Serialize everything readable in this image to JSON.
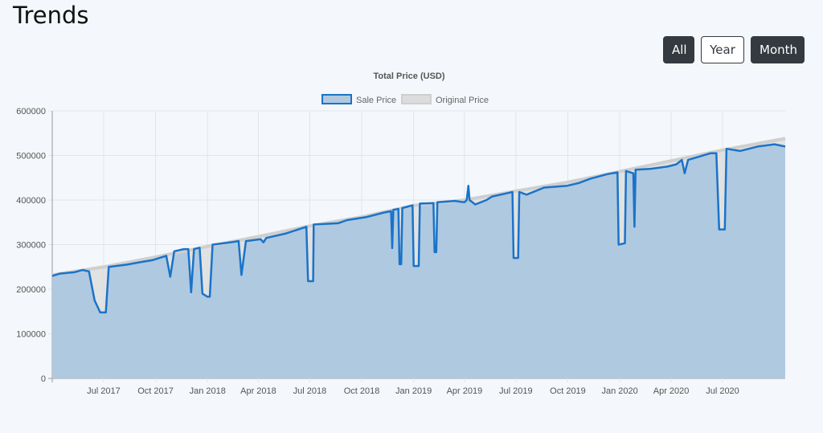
{
  "header": {
    "title": "Trends"
  },
  "range_toggle": {
    "all_label": "All",
    "year_label": "Year",
    "month_label": "Month",
    "active": "Month"
  },
  "chart_data": {
    "type": "area",
    "title": "Total Price (USD)",
    "legend_position": "top-center",
    "grid": true,
    "ylim": [
      0,
      600000
    ],
    "yticks": [
      0,
      100000,
      200000,
      300000,
      400000,
      500000,
      600000
    ],
    "xlim": [
      "2017-04-01",
      "2020-10-20"
    ],
    "xticks": [
      {
        "date": "2017-07-01",
        "label": "Jul 2017"
      },
      {
        "date": "2017-10-01",
        "label": "Oct 2017"
      },
      {
        "date": "2018-01-01",
        "label": "Jan 2018"
      },
      {
        "date": "2018-04-01",
        "label": "Apr 2018"
      },
      {
        "date": "2018-07-01",
        "label": "Jul 2018"
      },
      {
        "date": "2018-10-01",
        "label": "Oct 2018"
      },
      {
        "date": "2019-01-01",
        "label": "Jan 2019"
      },
      {
        "date": "2019-04-01",
        "label": "Apr 2019"
      },
      {
        "date": "2019-07-01",
        "label": "Jul 2019"
      },
      {
        "date": "2019-10-01",
        "label": "Oct 2019"
      },
      {
        "date": "2020-01-01",
        "label": "Jan 2020"
      },
      {
        "date": "2020-04-01",
        "label": "Apr 2020"
      },
      {
        "date": "2020-07-01",
        "label": "Jul 2020"
      }
    ],
    "series": [
      {
        "name": "Original Price",
        "color": "#d3d3d3",
        "points": [
          [
            "2017-04-01",
            232000
          ],
          [
            "2017-07-01",
            250000
          ],
          [
            "2017-10-01",
            272000
          ],
          [
            "2018-01-01",
            296000
          ],
          [
            "2018-04-01",
            318000
          ],
          [
            "2018-07-01",
            342000
          ],
          [
            "2018-10-01",
            362000
          ],
          [
            "2019-01-01",
            388000
          ],
          [
            "2019-04-01",
            400000
          ],
          [
            "2019-07-01",
            420000
          ],
          [
            "2019-10-01",
            440000
          ],
          [
            "2020-01-01",
            464000
          ],
          [
            "2020-04-01",
            488000
          ],
          [
            "2020-07-01",
            512000
          ],
          [
            "2020-10-20",
            538000
          ]
        ]
      },
      {
        "name": "Sale Price",
        "color": "#1a73c9",
        "fill": "#afc9e0",
        "points": [
          [
            "2017-04-01",
            230000
          ],
          [
            "2017-04-15",
            235000
          ],
          [
            "2017-05-10",
            238000
          ],
          [
            "2017-05-25",
            243000
          ],
          [
            "2017-06-05",
            240000
          ],
          [
            "2017-06-15",
            175000
          ],
          [
            "2017-06-25",
            148000
          ],
          [
            "2017-07-05",
            148000
          ],
          [
            "2017-07-10",
            250000
          ],
          [
            "2017-08-10",
            255000
          ],
          [
            "2017-09-10",
            262000
          ],
          [
            "2017-09-25",
            265000
          ],
          [
            "2017-10-08",
            270000
          ],
          [
            "2017-10-20",
            275000
          ],
          [
            "2017-10-27",
            228000
          ],
          [
            "2017-11-03",
            285000
          ],
          [
            "2017-11-20",
            290000
          ],
          [
            "2017-11-28",
            290000
          ],
          [
            "2017-12-03",
            193000
          ],
          [
            "2017-12-08",
            290000
          ],
          [
            "2017-12-18",
            293000
          ],
          [
            "2017-12-23",
            190000
          ],
          [
            "2018-01-01",
            183000
          ],
          [
            "2018-01-05",
            183000
          ],
          [
            "2018-01-10",
            300000
          ],
          [
            "2018-02-10",
            305000
          ],
          [
            "2018-02-25",
            308000
          ],
          [
            "2018-03-02",
            232000
          ],
          [
            "2018-03-10",
            308000
          ],
          [
            "2018-04-05",
            312000
          ],
          [
            "2018-04-10",
            305000
          ],
          [
            "2018-04-15",
            315000
          ],
          [
            "2018-05-20",
            325000
          ],
          [
            "2018-06-25",
            340000
          ],
          [
            "2018-06-28",
            218000
          ],
          [
            "2018-07-07",
            218000
          ],
          [
            "2018-07-08",
            345000
          ],
          [
            "2018-08-20",
            348000
          ],
          [
            "2018-09-05",
            355000
          ],
          [
            "2018-10-10",
            362000
          ],
          [
            "2018-11-10",
            372000
          ],
          [
            "2018-11-22",
            375000
          ],
          [
            "2018-11-24",
            292000
          ],
          [
            "2018-11-26",
            378000
          ],
          [
            "2018-12-05",
            380000
          ],
          [
            "2018-12-07",
            256000
          ],
          [
            "2018-12-10",
            256000
          ],
          [
            "2018-12-12",
            382000
          ],
          [
            "2018-12-30",
            388000
          ],
          [
            "2019-01-01",
            252000
          ],
          [
            "2019-01-10",
            252000
          ],
          [
            "2019-01-12",
            392000
          ],
          [
            "2019-02-05",
            393000
          ],
          [
            "2019-02-07",
            283000
          ],
          [
            "2019-02-10",
            283000
          ],
          [
            "2019-02-12",
            395000
          ],
          [
            "2019-03-15",
            398000
          ],
          [
            "2019-04-01",
            395000
          ],
          [
            "2019-04-05",
            400000
          ],
          [
            "2019-04-08",
            432000
          ],
          [
            "2019-04-10",
            400000
          ],
          [
            "2019-04-20",
            390000
          ],
          [
            "2019-05-10",
            400000
          ],
          [
            "2019-05-20",
            408000
          ],
          [
            "2019-06-25",
            418000
          ],
          [
            "2019-06-27",
            270000
          ],
          [
            "2019-07-05",
            270000
          ],
          [
            "2019-07-07",
            418000
          ],
          [
            "2019-07-20",
            412000
          ],
          [
            "2019-08-20",
            428000
          ],
          [
            "2019-09-30",
            432000
          ],
          [
            "2019-10-20",
            438000
          ],
          [
            "2019-11-10",
            448000
          ],
          [
            "2019-12-10",
            458000
          ],
          [
            "2019-12-28",
            462000
          ],
          [
            "2019-12-30",
            300000
          ],
          [
            "2020-01-10",
            303000
          ],
          [
            "2020-01-12",
            465000
          ],
          [
            "2020-01-25",
            460000
          ],
          [
            "2020-01-27",
            340000
          ],
          [
            "2020-01-29",
            468000
          ],
          [
            "2020-02-25",
            470000
          ],
          [
            "2020-03-25",
            475000
          ],
          [
            "2020-04-10",
            480000
          ],
          [
            "2020-04-20",
            490000
          ],
          [
            "2020-04-25",
            460000
          ],
          [
            "2020-05-01",
            490000
          ],
          [
            "2020-06-10",
            505000
          ],
          [
            "2020-06-20",
            505000
          ],
          [
            "2020-06-25",
            334000
          ],
          [
            "2020-07-05",
            334000
          ],
          [
            "2020-07-08",
            515000
          ],
          [
            "2020-08-01",
            510000
          ],
          [
            "2020-09-01",
            520000
          ],
          [
            "2020-10-01",
            525000
          ],
          [
            "2020-10-20",
            520000
          ]
        ]
      }
    ]
  }
}
